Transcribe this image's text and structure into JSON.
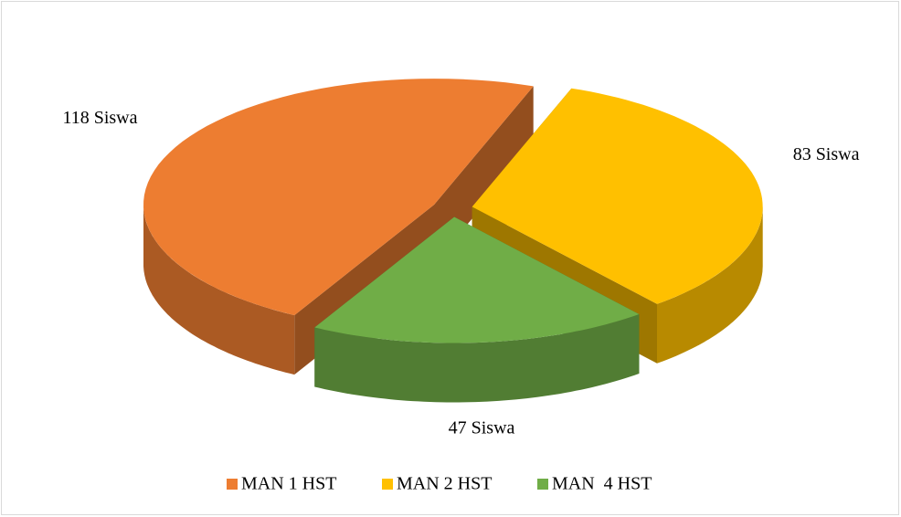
{
  "chart_data": {
    "type": "pie3d",
    "categories": [
      "MAN 1 HST",
      "MAN 2 HST",
      "MAN  4 HST"
    ],
    "values": [
      118,
      83,
      47
    ],
    "value_labels": [
      "118 Siswa",
      "83 Siswa",
      "47 Siswa"
    ],
    "colors": [
      "#ed7d31",
      "#ffc000",
      "#70ad47"
    ],
    "legend": "bottom"
  }
}
